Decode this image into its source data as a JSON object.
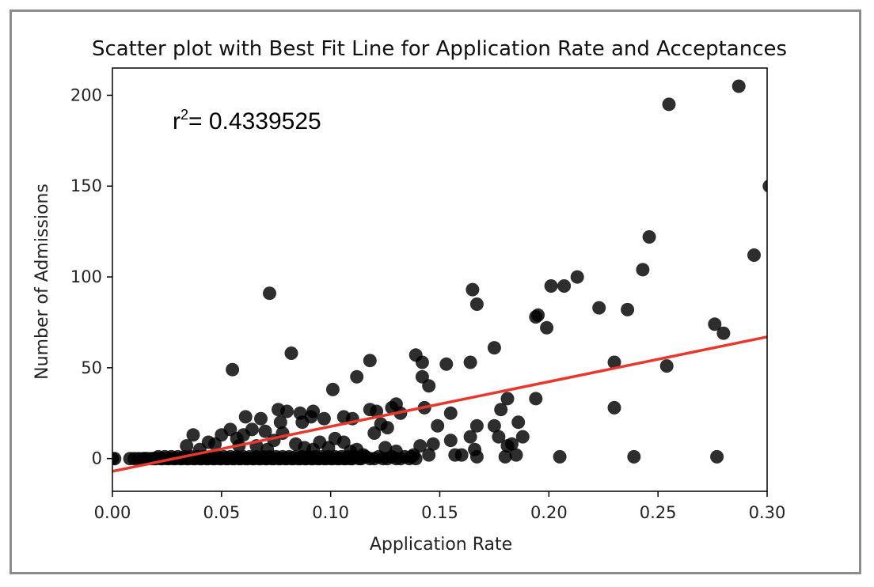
{
  "chart_data": {
    "type": "scatter",
    "title": "Scatter plot with Best Fit Line for Application Rate and Acceptances",
    "xlabel": "Application Rate",
    "ylabel": "Number of Admissions",
    "xlim": [
      0.0,
      0.3
    ],
    "ylim": [
      -18,
      215
    ],
    "x_ticks": [
      0.0,
      0.05,
      0.1,
      0.15,
      0.2,
      0.25,
      0.3
    ],
    "x_tick_labels": [
      "0.00",
      "0.05",
      "0.10",
      "0.15",
      "0.20",
      "0.25",
      "0.30"
    ],
    "y_ticks": [
      0,
      50,
      100,
      150,
      200
    ],
    "y_tick_labels": [
      "0",
      "50",
      "100",
      "150",
      "200"
    ],
    "grid": false,
    "annotation": {
      "prefix": "r",
      "superscript": "2",
      "text": "= 0.4339525"
    },
    "colors": {
      "points": "#000000",
      "fit_line": "#e8372b"
    },
    "fit_line": {
      "x": [
        0.0,
        0.3
      ],
      "y": [
        -7,
        67
      ]
    },
    "points": [
      [
        0.255,
        195
      ],
      [
        0.287,
        205
      ],
      [
        0.301,
        150
      ],
      [
        0.294,
        112
      ],
      [
        0.246,
        122
      ],
      [
        0.243,
        104
      ],
      [
        0.213,
        100
      ],
      [
        0.201,
        95
      ],
      [
        0.207,
        95
      ],
      [
        0.223,
        83
      ],
      [
        0.236,
        82
      ],
      [
        0.194,
        78
      ],
      [
        0.195,
        79
      ],
      [
        0.199,
        72
      ],
      [
        0.276,
        74
      ],
      [
        0.28,
        69
      ],
      [
        0.165,
        93
      ],
      [
        0.167,
        85
      ],
      [
        0.072,
        91
      ],
      [
        0.082,
        58
      ],
      [
        0.055,
        49
      ],
      [
        0.139,
        57
      ],
      [
        0.142,
        53
      ],
      [
        0.142,
        45
      ],
      [
        0.145,
        40
      ],
      [
        0.153,
        52
      ],
      [
        0.164,
        53
      ],
      [
        0.175,
        61
      ],
      [
        0.112,
        45
      ],
      [
        0.118,
        54
      ],
      [
        0.101,
        38
      ],
      [
        0.254,
        51
      ],
      [
        0.23,
        53
      ],
      [
        0.23,
        28
      ],
      [
        0.194,
        33
      ],
      [
        0.181,
        33
      ],
      [
        0.178,
        27
      ],
      [
        0.186,
        20
      ],
      [
        0.188,
        12
      ],
      [
        0.185,
        2
      ],
      [
        0.205,
        1
      ],
      [
        0.239,
        1
      ],
      [
        0.277,
        1
      ],
      [
        0.143,
        28
      ],
      [
        0.155,
        25
      ],
      [
        0.149,
        18
      ],
      [
        0.164,
        12
      ],
      [
        0.167,
        18
      ],
      [
        0.175,
        18
      ],
      [
        0.181,
        7
      ],
      [
        0.183,
        8
      ],
      [
        0.177,
        12
      ],
      [
        0.166,
        5
      ],
      [
        0.157,
        2
      ],
      [
        0.16,
        2
      ],
      [
        0.155,
        10
      ],
      [
        0.147,
        8
      ],
      [
        0.141,
        7
      ],
      [
        0.138,
        2
      ],
      [
        0.145,
        2
      ],
      [
        0.128,
        28
      ],
      [
        0.132,
        25
      ],
      [
        0.13,
        30
      ],
      [
        0.126,
        17
      ],
      [
        0.121,
        26
      ],
      [
        0.118,
        27
      ],
      [
        0.123,
        19
      ],
      [
        0.12,
        14
      ],
      [
        0.11,
        22
      ],
      [
        0.106,
        23
      ],
      [
        0.102,
        11
      ],
      [
        0.099,
        6
      ],
      [
        0.106,
        9
      ],
      [
        0.109,
        4
      ],
      [
        0.097,
        22
      ],
      [
        0.092,
        26
      ],
      [
        0.091,
        23
      ],
      [
        0.087,
        20
      ],
      [
        0.086,
        25
      ],
      [
        0.08,
        26
      ],
      [
        0.078,
        14
      ],
      [
        0.076,
        27
      ],
      [
        0.077,
        20
      ],
      [
        0.074,
        10
      ],
      [
        0.07,
        15
      ],
      [
        0.068,
        22
      ],
      [
        0.061,
        23
      ],
      [
        0.064,
        16
      ],
      [
        0.06,
        13
      ],
      [
        0.057,
        11
      ],
      [
        0.054,
        16
      ],
      [
        0.05,
        13
      ],
      [
        0.047,
        8
      ],
      [
        0.044,
        9
      ],
      [
        0.04,
        5
      ],
      [
        0.037,
        13
      ],
      [
        0.034,
        7
      ],
      [
        0.084,
        8
      ],
      [
        0.088,
        6
      ],
      [
        0.092,
        5
      ],
      [
        0.095,
        9
      ],
      [
        0.066,
        7
      ],
      [
        0.071,
        5
      ],
      [
        0.058,
        7
      ],
      [
        0.125,
        6
      ],
      [
        0.13,
        4
      ],
      [
        0.167,
        1
      ],
      [
        0.18,
        1
      ],
      [
        0.115,
        2
      ],
      [
        0.112,
        5
      ],
      [
        0.0,
        0
      ],
      [
        0.001,
        0
      ],
      [
        0.008,
        0
      ],
      [
        0.01,
        0
      ],
      [
        0.012,
        0
      ],
      [
        0.014,
        0
      ],
      [
        0.015,
        0
      ],
      [
        0.016,
        0
      ],
      [
        0.018,
        0
      ],
      [
        0.019,
        0
      ],
      [
        0.02,
        0
      ],
      [
        0.021,
        1
      ],
      [
        0.022,
        0
      ],
      [
        0.023,
        0
      ],
      [
        0.024,
        1
      ],
      [
        0.025,
        0
      ],
      [
        0.026,
        0
      ],
      [
        0.027,
        1
      ],
      [
        0.028,
        0
      ],
      [
        0.029,
        0
      ],
      [
        0.03,
        1
      ],
      [
        0.031,
        0
      ],
      [
        0.032,
        0
      ],
      [
        0.033,
        1
      ],
      [
        0.034,
        0
      ],
      [
        0.035,
        0
      ],
      [
        0.036,
        1
      ],
      [
        0.037,
        0
      ],
      [
        0.038,
        0
      ],
      [
        0.039,
        1
      ],
      [
        0.04,
        0
      ],
      [
        0.041,
        0
      ],
      [
        0.042,
        1
      ],
      [
        0.043,
        0
      ],
      [
        0.044,
        0
      ],
      [
        0.045,
        1
      ],
      [
        0.046,
        0
      ],
      [
        0.047,
        0
      ],
      [
        0.048,
        1
      ],
      [
        0.049,
        0
      ],
      [
        0.05,
        0
      ],
      [
        0.051,
        1
      ],
      [
        0.052,
        0
      ],
      [
        0.053,
        0
      ],
      [
        0.054,
        1
      ],
      [
        0.055,
        0
      ],
      [
        0.056,
        0
      ],
      [
        0.057,
        1
      ],
      [
        0.058,
        0
      ],
      [
        0.059,
        0
      ],
      [
        0.06,
        1
      ],
      [
        0.061,
        0
      ],
      [
        0.062,
        0
      ],
      [
        0.063,
        1
      ],
      [
        0.064,
        0
      ],
      [
        0.065,
        0
      ],
      [
        0.066,
        1
      ],
      [
        0.067,
        0
      ],
      [
        0.068,
        0
      ],
      [
        0.069,
        1
      ],
      [
        0.07,
        0
      ],
      [
        0.071,
        0
      ],
      [
        0.072,
        1
      ],
      [
        0.073,
        0
      ],
      [
        0.074,
        0
      ],
      [
        0.075,
        1
      ],
      [
        0.076,
        0
      ],
      [
        0.077,
        0
      ],
      [
        0.078,
        1
      ],
      [
        0.079,
        0
      ],
      [
        0.08,
        0
      ],
      [
        0.081,
        1
      ],
      [
        0.082,
        0
      ],
      [
        0.083,
        0
      ],
      [
        0.084,
        1
      ],
      [
        0.085,
        0
      ],
      [
        0.086,
        0
      ],
      [
        0.087,
        1
      ],
      [
        0.088,
        0
      ],
      [
        0.089,
        0
      ],
      [
        0.09,
        1
      ],
      [
        0.091,
        0
      ],
      [
        0.092,
        0
      ],
      [
        0.093,
        1
      ],
      [
        0.094,
        0
      ],
      [
        0.095,
        0
      ],
      [
        0.096,
        1
      ],
      [
        0.097,
        0
      ],
      [
        0.098,
        0
      ],
      [
        0.099,
        1
      ],
      [
        0.1,
        0
      ],
      [
        0.101,
        0
      ],
      [
        0.102,
        1
      ],
      [
        0.103,
        0
      ],
      [
        0.104,
        0
      ],
      [
        0.105,
        1
      ],
      [
        0.106,
        0
      ],
      [
        0.107,
        0
      ],
      [
        0.108,
        1
      ],
      [
        0.109,
        0
      ],
      [
        0.11,
        0
      ],
      [
        0.111,
        1
      ],
      [
        0.113,
        0
      ],
      [
        0.114,
        0
      ],
      [
        0.116,
        1
      ],
      [
        0.118,
        0
      ],
      [
        0.12,
        0
      ],
      [
        0.122,
        1
      ],
      [
        0.124,
        0
      ],
      [
        0.126,
        0
      ],
      [
        0.128,
        1
      ],
      [
        0.13,
        0
      ],
      [
        0.132,
        0
      ],
      [
        0.134,
        1
      ],
      [
        0.136,
        0
      ],
      [
        0.137,
        1
      ],
      [
        0.139,
        0
      ]
    ]
  }
}
